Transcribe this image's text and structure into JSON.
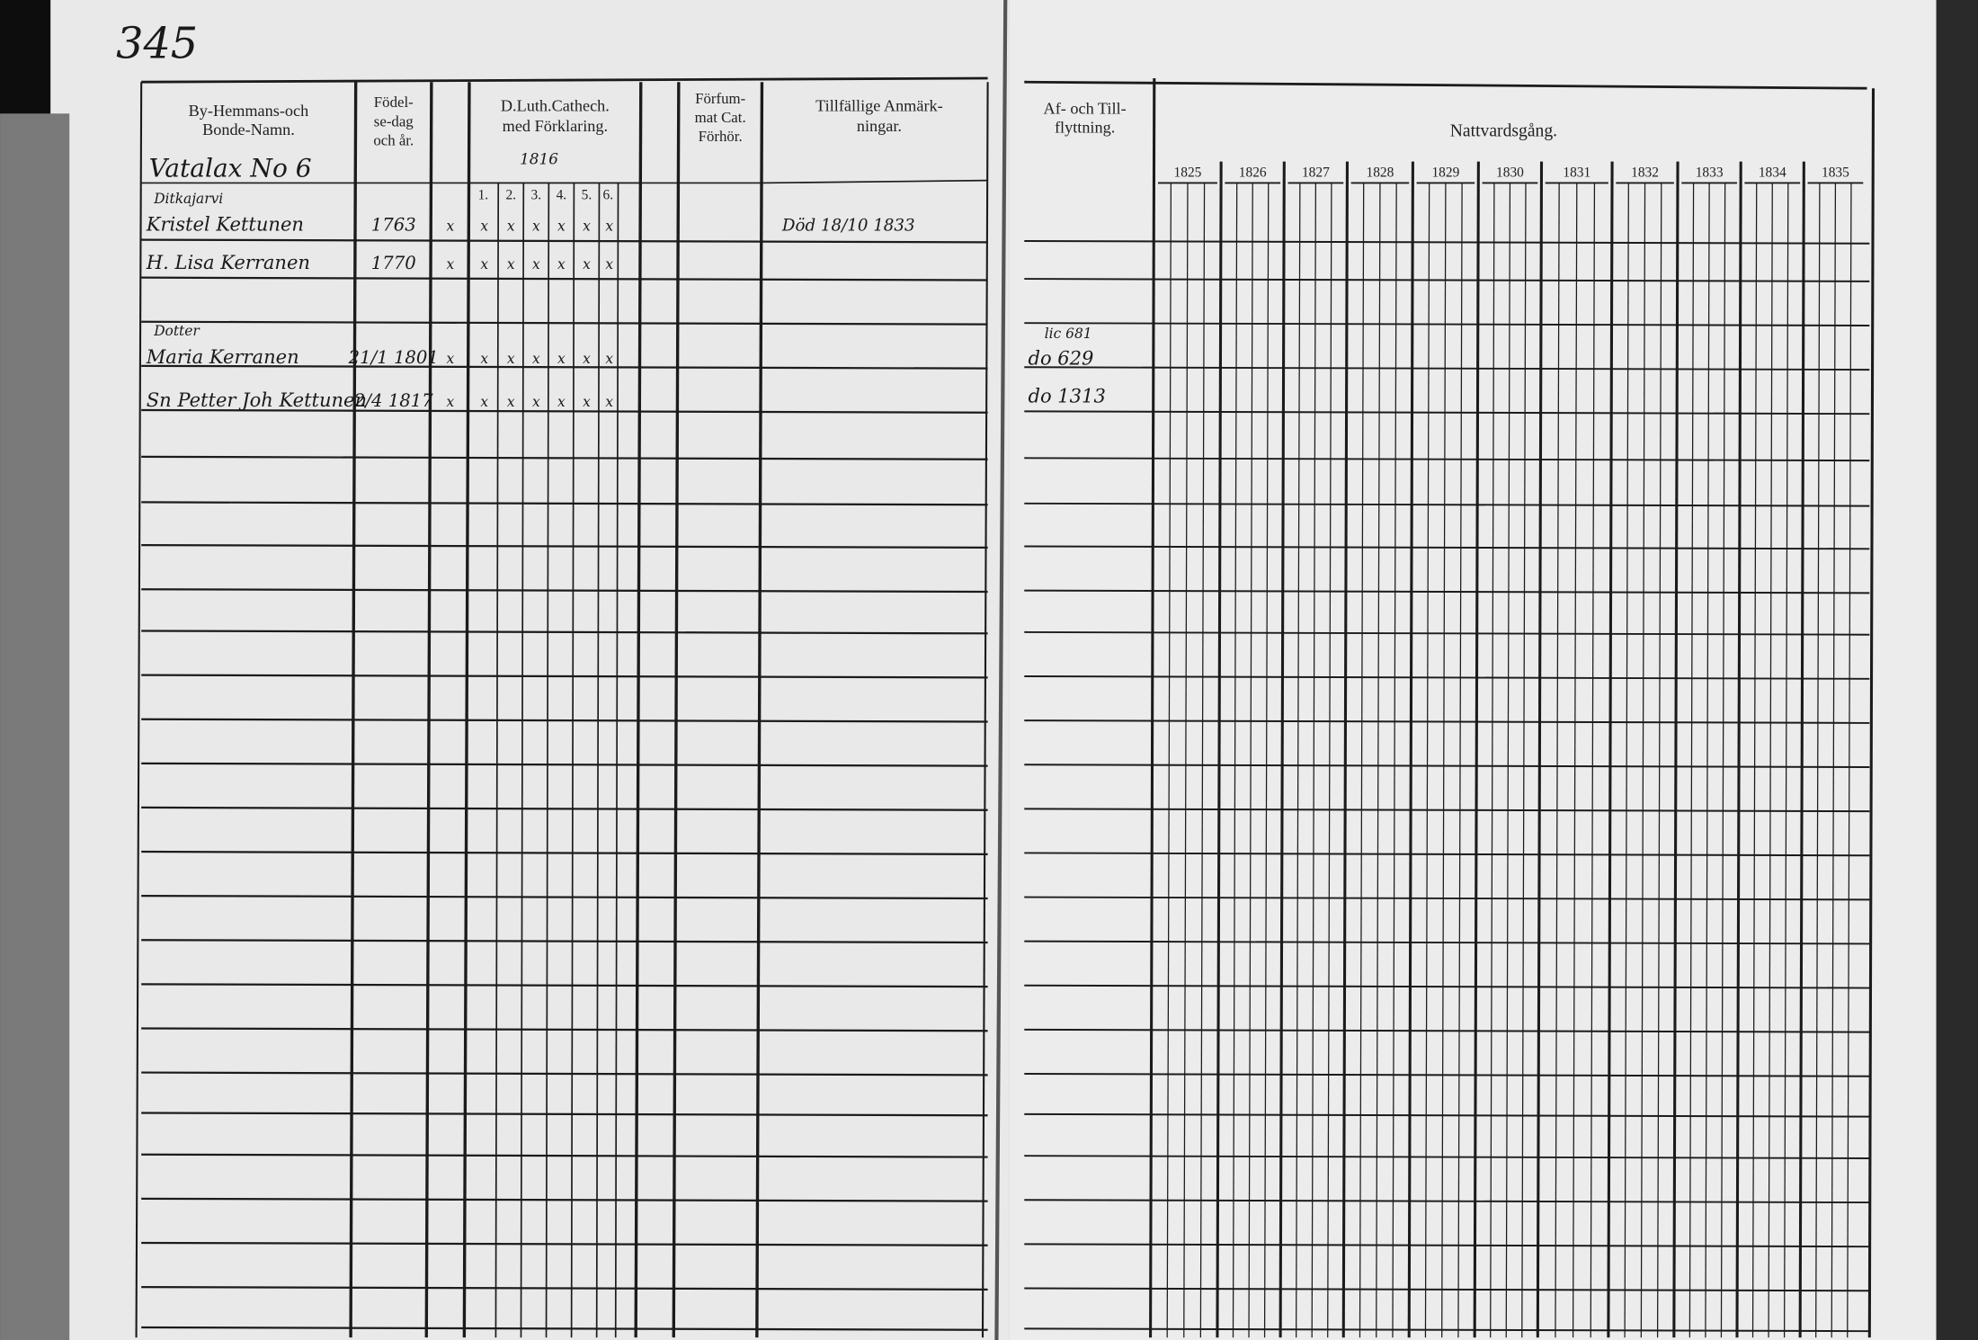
{
  "page_number": "345",
  "left_headers": {
    "name": [
      "By-Hemmans-och",
      "Bonde-Namn."
    ],
    "birth": [
      "Födel-",
      "se-dag",
      "och år."
    ],
    "catechism": [
      "D.Luth.Cathech.",
      "med Förklaring."
    ],
    "missed": [
      "Förfum-",
      "mat Cat.",
      "Förhör."
    ],
    "remarks": [
      "Tillfällige Anmärk-",
      "ningar."
    ]
  },
  "catechism_parts": [
    "1.",
    "2.",
    "3.",
    "4.",
    "5.",
    "6."
  ],
  "right_headers": {
    "moving": [
      "Af- och Till-",
      "flyttning."
    ],
    "communion": "Nattvardsgång."
  },
  "years": [
    "1825",
    "1826",
    "1827",
    "1828",
    "1829",
    "1830",
    "1831",
    "1832",
    "1833",
    "1834",
    "1835"
  ],
  "village": "Vatalax No 6",
  "catechism_year": "1816",
  "entries": [
    {
      "note": "Ditkajarvi",
      "name": "Kristel Kettunen",
      "birth": "1763",
      "marks": [
        "x",
        "x",
        "x",
        "x",
        "x",
        "x",
        "x"
      ],
      "remark": "Död 18/10 1833",
      "moving": ""
    },
    {
      "note": "",
      "name": "H. Lisa Kerranen",
      "birth": "1770",
      "marks": [
        "x",
        "x",
        "x",
        "x",
        "x",
        "x",
        "x"
      ],
      "remark": "",
      "moving": ""
    },
    {
      "note": "Dotter",
      "name": "Maria Kerranen",
      "birth": "21/1 1801",
      "marks": [
        "x",
        "x",
        "x",
        "x",
        "x",
        "x",
        "x"
      ],
      "remark": "",
      "moving": "do 629"
    },
    {
      "note": "",
      "name": "Sn Petter Joh Kettunen",
      "birth": "2/4 1817",
      "marks": [
        "x",
        "x",
        "x",
        "x",
        "x",
        "x",
        "x"
      ],
      "remark": "",
      "moving": "do 1313"
    }
  ],
  "moving_extra": "lic 681"
}
